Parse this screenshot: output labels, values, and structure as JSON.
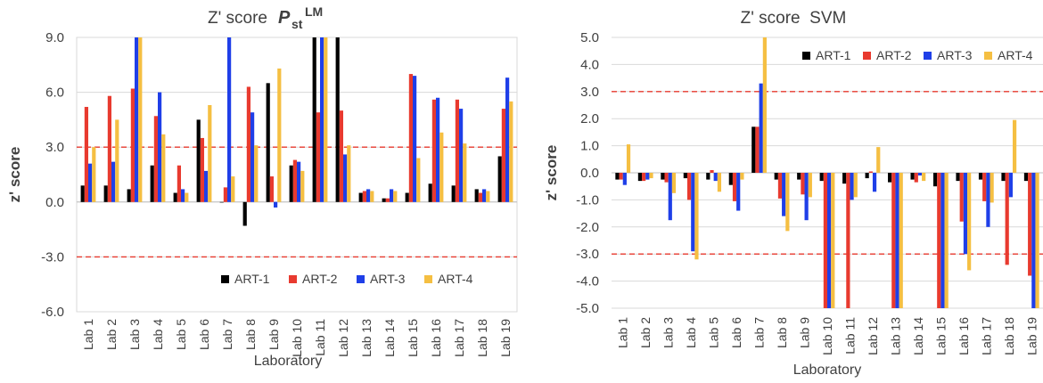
{
  "chart_data": [
    {
      "type": "bar",
      "title": "Z' score",
      "title_symbol": "P",
      "title_symbol_sub": "st",
      "title_symbol_sup": "LM",
      "xlabel": "Laboratory",
      "ylabel": "z' score",
      "ylim": [
        -6,
        9
      ],
      "yticks": [
        "-6.0",
        "-3.0",
        "0.0",
        "3.0",
        "6.0",
        "9.0"
      ],
      "yticks_values": [
        -6,
        -3,
        0,
        3,
        6,
        9
      ],
      "threshold_lines": [
        3,
        -3
      ],
      "grid": true,
      "legend_position": "bottom-right",
      "categories": [
        "Lab 1",
        "Lab 2",
        "Lab 3",
        "Lab 4",
        "Lab 5",
        "Lab 6",
        "Lab 7",
        "Lab 8",
        "Lab 9",
        "Lab 10",
        "Lab 11",
        "Lab 12",
        "Lab 13",
        "Lab 14",
        "Lab 15",
        "Lab 16",
        "Lab 17",
        "Lab 18",
        "Lab 19"
      ],
      "series": [
        {
          "name": "ART-1",
          "color": "#000000",
          "values": [
            0.9,
            0.9,
            0.7,
            2.0,
            0.5,
            4.5,
            0.0,
            -1.3,
            6.5,
            2.0,
            9.0,
            9.0,
            0.5,
            0.2,
            0.5,
            1.0,
            0.9,
            0.7,
            2.5
          ]
        },
        {
          "name": "ART-2",
          "color": "#e83a2f",
          "values": [
            5.2,
            5.8,
            6.2,
            4.7,
            2.0,
            3.5,
            0.8,
            6.3,
            1.4,
            2.3,
            4.9,
            5.0,
            0.6,
            0.2,
            7.0,
            5.6,
            5.6,
            0.5,
            5.1
          ]
        },
        {
          "name": "ART-3",
          "color": "#1f3fe8",
          "values": [
            2.1,
            2.2,
            9.0,
            6.0,
            0.7,
            1.7,
            9.0,
            4.9,
            -0.3,
            2.2,
            9.0,
            2.6,
            0.7,
            0.7,
            6.9,
            5.7,
            5.1,
            0.7,
            6.8
          ]
        },
        {
          "name": "ART-4",
          "color": "#f5bf42",
          "values": [
            3.0,
            4.5,
            9.0,
            3.7,
            0.5,
            5.3,
            1.4,
            3.1,
            7.3,
            1.7,
            9.0,
            3.1,
            0.6,
            0.6,
            2.4,
            3.8,
            3.2,
            0.6,
            5.5
          ]
        }
      ]
    },
    {
      "type": "bar",
      "title": "Z' score  SVM",
      "xlabel": "Laboratory",
      "ylabel": "z' score",
      "ylim": [
        -5,
        5
      ],
      "yticks": [
        "-5.0",
        "-4.0",
        "-3.0",
        "-2.0",
        "-1.0",
        "0.0",
        "1.0",
        "2.0",
        "3.0",
        "4.0",
        "5.0"
      ],
      "yticks_values": [
        -5,
        -4,
        -3,
        -2,
        -1,
        0,
        1,
        2,
        3,
        4,
        5
      ],
      "threshold_lines": [
        3,
        -3
      ],
      "grid": true,
      "legend_position": "top-right",
      "categories": [
        "Lab 1",
        "Lab 2",
        "Lab 3",
        "Lab 4",
        "Lab 5",
        "Lab 6",
        "Lab 7",
        "Lab 8",
        "Lab 9",
        "Lab 10",
        "Lab 11",
        "Lab 12",
        "Lab 13",
        "Lab 14",
        "Lab 15",
        "Lab 16",
        "Lab 17",
        "Lab 18",
        "Lab 19"
      ],
      "series": [
        {
          "name": "ART-1",
          "color": "#000000",
          "values": [
            -0.25,
            -0.3,
            -0.25,
            -0.2,
            -0.25,
            -0.45,
            1.7,
            -0.25,
            -0.25,
            -0.3,
            -0.4,
            -0.2,
            -0.35,
            -0.25,
            -0.5,
            -0.3,
            -0.25,
            -0.3,
            -0.3
          ]
        },
        {
          "name": "ART-2",
          "color": "#e83a2f",
          "values": [
            -0.25,
            -0.3,
            -0.35,
            -1.0,
            0.1,
            -1.05,
            1.7,
            -0.95,
            -0.8,
            -5.0,
            -5.0,
            0.05,
            -5.0,
            -0.35,
            -5.0,
            -1.8,
            -1.05,
            -3.4,
            -3.8
          ]
        },
        {
          "name": "ART-3",
          "color": "#1f3fe8",
          "values": [
            -0.45,
            -0.25,
            -1.75,
            -2.9,
            -0.3,
            -1.4,
            3.3,
            -1.6,
            -1.75,
            -5.0,
            -1.0,
            -0.7,
            -5.0,
            -0.1,
            -5.0,
            -3.0,
            -2.0,
            -0.9,
            -5.0
          ]
        },
        {
          "name": "ART-4",
          "color": "#f5bf42",
          "values": [
            1.05,
            -0.2,
            -0.75,
            -3.2,
            -0.7,
            -0.25,
            5.0,
            -2.15,
            -0.9,
            -5.0,
            -0.9,
            0.95,
            -5.0,
            -0.3,
            -5.0,
            -3.6,
            -1.1,
            1.95,
            -5.0
          ]
        }
      ]
    }
  ]
}
